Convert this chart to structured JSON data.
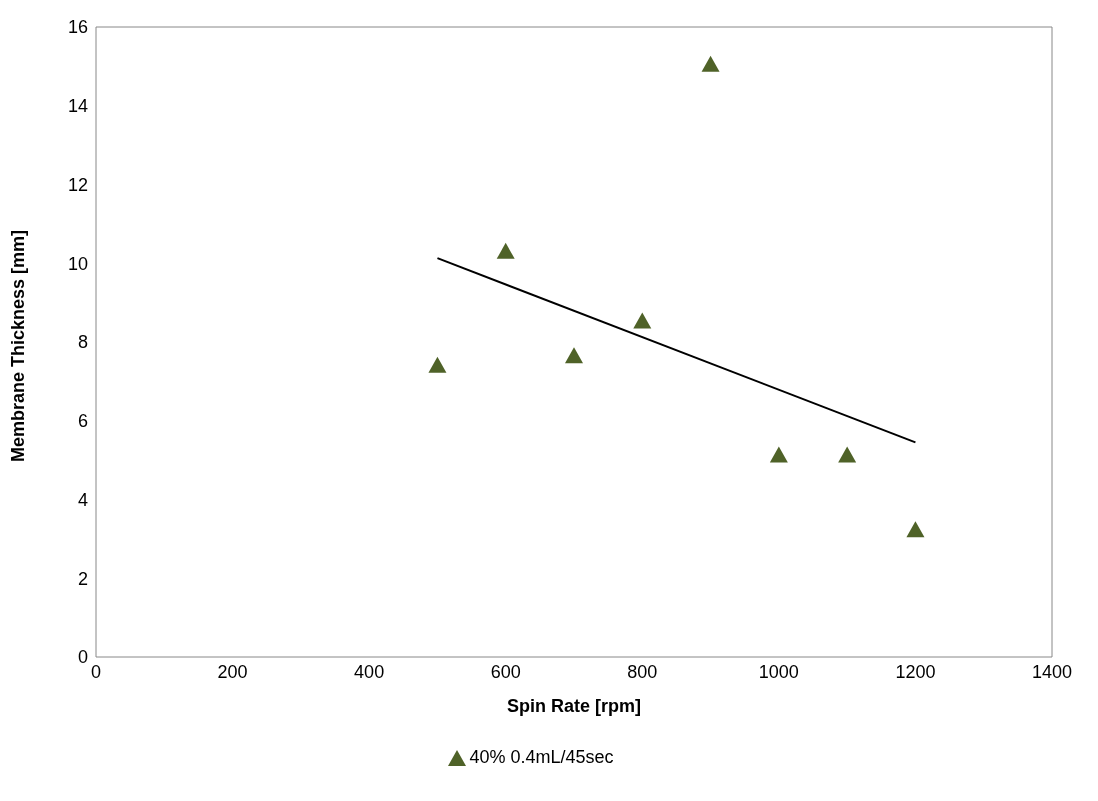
{
  "chart_data": {
    "type": "scatter",
    "xlabel": "Spin Rate [rpm]",
    "ylabel": "Membrane Thickness [mm]",
    "xlim": [
      0,
      1400
    ],
    "xticks": [
      0,
      200,
      400,
      600,
      800,
      1000,
      1200,
      1400
    ],
    "ylim": [
      0,
      16
    ],
    "yticks": [
      0,
      2,
      4,
      6,
      8,
      10,
      12,
      14,
      16
    ],
    "legend": "bottom",
    "marker": "triangle",
    "series": [
      {
        "name": "40% 0.4mL/45sec",
        "color": "#4f6228",
        "x": [
          500,
          600,
          700,
          800,
          900,
          1000,
          1100,
          1200
        ],
        "values": [
          7.4,
          10.29,
          7.64,
          8.52,
          15.04,
          5.12,
          5.12,
          3.22
        ]
      },
      {
        "type": "line",
        "color": "#000000",
        "marker": "none",
        "line_style": "solid",
        "x": [
          500,
          1200
        ],
        "values": [
          10.13,
          5.45
        ]
      }
    ]
  }
}
